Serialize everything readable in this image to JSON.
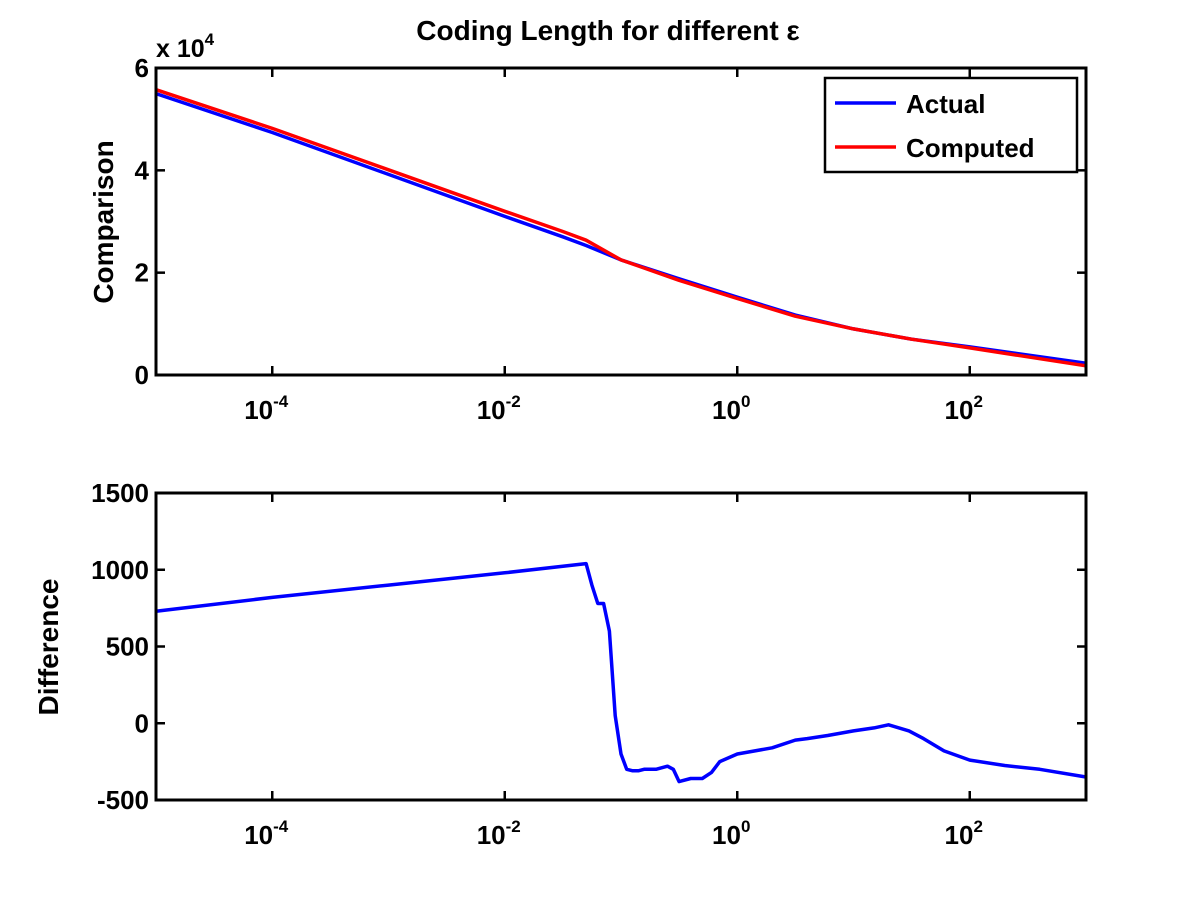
{
  "chart_data": [
    {
      "type": "line",
      "title": "Coding Length for different ε",
      "xlabel": "",
      "ylabel": "Comparison",
      "x_scale": "log",
      "xlim": [
        1e-05,
        1000
      ],
      "ylim": [
        0,
        60000
      ],
      "y_multiplier_label": "x 10",
      "y_multiplier_exp": "4",
      "x_ticks": [
        {
          "value": 0.0001,
          "base": "10",
          "exp": "-4"
        },
        {
          "value": 0.01,
          "base": "10",
          "exp": "-2"
        },
        {
          "value": 1,
          "base": "10",
          "exp": "0"
        },
        {
          "value": 100,
          "base": "10",
          "exp": "2"
        }
      ],
      "y_ticks": [
        {
          "value": 0,
          "label": "0"
        },
        {
          "value": 20000,
          "label": "2"
        },
        {
          "value": 40000,
          "label": "4"
        },
        {
          "value": 60000,
          "label": "6"
        }
      ],
      "legend_position": "top-right",
      "series": [
        {
          "name": "Actual",
          "color": "#0000ff",
          "x": [
            1e-05,
            0.0001,
            0.001,
            0.01,
            0.0316,
            0.0501,
            0.1,
            0.316,
            1,
            3.16,
            10,
            31.6,
            100,
            1000
          ],
          "y": [
            55000,
            47400,
            39200,
            31000,
            27000,
            25300,
            22500,
            18800,
            15200,
            11700,
            9000,
            7000,
            5500,
            2300
          ]
        },
        {
          "name": "Computed",
          "color": "#ff0000",
          "x": [
            1e-05,
            0.0001,
            0.001,
            0.01,
            0.0316,
            0.0501,
            0.1,
            0.316,
            1,
            3.16,
            10,
            31.6,
            100,
            1000
          ],
          "y": [
            55750,
            48200,
            40100,
            32000,
            28050,
            26350,
            22500,
            18500,
            14950,
            11500,
            9000,
            7000,
            5300,
            1800
          ]
        }
      ]
    },
    {
      "type": "line",
      "title": "",
      "xlabel": "",
      "ylabel": "Difference",
      "x_scale": "log",
      "xlim": [
        1e-05,
        1000
      ],
      "ylim": [
        -500,
        1500
      ],
      "x_ticks": [
        {
          "value": 0.0001,
          "base": "10",
          "exp": "-4"
        },
        {
          "value": 0.01,
          "base": "10",
          "exp": "-2"
        },
        {
          "value": 1,
          "base": "10",
          "exp": "0"
        },
        {
          "value": 100,
          "base": "10",
          "exp": "2"
        }
      ],
      "y_ticks": [
        {
          "value": -500,
          "label": "-500"
        },
        {
          "value": 0,
          "label": "0"
        },
        {
          "value": 500,
          "label": "500"
        },
        {
          "value": 1000,
          "label": "1000"
        },
        {
          "value": 1500,
          "label": "1500"
        }
      ],
      "series": [
        {
          "color": "#0000ff",
          "x": [
            1e-05,
            0.0001,
            0.001,
            0.01,
            0.0501,
            0.0562,
            0.0631,
            0.0708,
            0.0794,
            0.0891,
            0.1,
            0.112,
            0.126,
            0.141,
            0.158,
            0.2,
            0.251,
            0.282,
            0.316,
            0.398,
            0.5,
            0.6,
            0.708,
            1,
            2,
            3.16,
            4,
            6,
            10,
            15,
            20,
            30,
            40,
            60,
            100,
            200,
            400,
            1000
          ],
          "y": [
            730,
            820,
            900,
            980,
            1040,
            900,
            780,
            780,
            600,
            50,
            -200,
            -300,
            -310,
            -310,
            -300,
            -300,
            -280,
            -300,
            -380,
            -360,
            -360,
            -320,
            -250,
            -200,
            -160,
            -110,
            -100,
            -80,
            -50,
            -30,
            -10,
            -50,
            -100,
            -180,
            -240,
            -275,
            -300,
            -350
          ]
        }
      ]
    }
  ]
}
